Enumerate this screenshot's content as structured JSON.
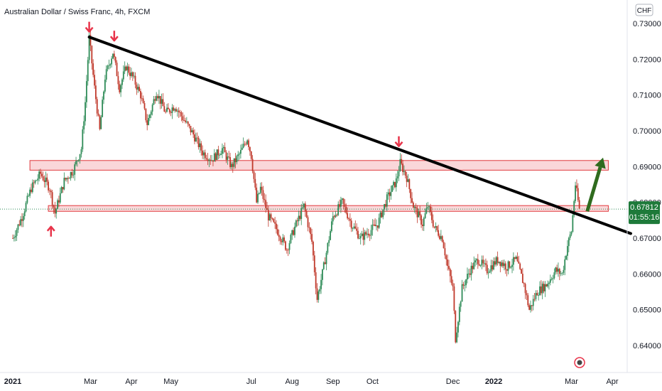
{
  "title": "Australian Dollar / Swiss Franc, 4h, FXCM",
  "currency": "CHF",
  "current": {
    "price": "0.67812",
    "countdown": "01:55:16",
    "color": "#1e7a3a"
  },
  "colors": {
    "up": "#2e8b57",
    "down": "#c0392b",
    "trendline": "#000000",
    "zone_fill": "#f8c9cc",
    "zone_stroke": "#e03a3e",
    "arrow_marker": "#e8344a",
    "projection": "#2f6b1e"
  },
  "chart_data": {
    "type": "candlestick",
    "symbol": "AUDCHF",
    "timeframe": "4h",
    "y_ticks": [
      "0.73000",
      "0.72000",
      "0.71000",
      "0.70000",
      "0.69000",
      "0.68000",
      "0.67000",
      "0.66000",
      "0.65000",
      "0.64000"
    ],
    "ylim": [
      0.6335,
      0.7335
    ],
    "x_ticks": [
      {
        "label": "2021",
        "date": "2021-01-01",
        "bold": true
      },
      {
        "label": "Mar",
        "date": "2021-03-01"
      },
      {
        "label": "Apr",
        "date": "2021-04-01"
      },
      {
        "label": "May",
        "date": "2021-05-01"
      },
      {
        "label": "Jul",
        "date": "2021-07-01"
      },
      {
        "label": "Aug",
        "date": "2021-08-01"
      },
      {
        "label": "Sep",
        "date": "2021-09-01"
      },
      {
        "label": "Oct",
        "date": "2021-10-01"
      },
      {
        "label": "Dec",
        "date": "2021-12-01"
      },
      {
        "label": "2022",
        "date": "2022-01-01",
        "bold": true
      },
      {
        "label": "Mar",
        "date": "2022-03-01"
      },
      {
        "label": "Apr",
        "date": "2022-04-01"
      }
    ],
    "price_path": [
      [
        "2021-01-01",
        0.67
      ],
      [
        "2021-01-08",
        0.676
      ],
      [
        "2021-01-15",
        0.684
      ],
      [
        "2021-01-22",
        0.688
      ],
      [
        "2021-01-29",
        0.684
      ],
      [
        "2021-02-02",
        0.677
      ],
      [
        "2021-02-09",
        0.686
      ],
      [
        "2021-02-16",
        0.689
      ],
      [
        "2021-02-22",
        0.695
      ],
      [
        "2021-02-25",
        0.708
      ],
      [
        "2021-02-28",
        0.726
      ],
      [
        "2021-03-04",
        0.712
      ],
      [
        "2021-03-08",
        0.7
      ],
      [
        "2021-03-12",
        0.715
      ],
      [
        "2021-03-18",
        0.722
      ],
      [
        "2021-03-23",
        0.712
      ],
      [
        "2021-03-28",
        0.718
      ],
      [
        "2021-04-02",
        0.715
      ],
      [
        "2021-04-08",
        0.71
      ],
      [
        "2021-04-13",
        0.702
      ],
      [
        "2021-04-20",
        0.711
      ],
      [
        "2021-04-27",
        0.705
      ],
      [
        "2021-05-04",
        0.707
      ],
      [
        "2021-05-11",
        0.703
      ],
      [
        "2021-05-18",
        0.699
      ],
      [
        "2021-05-25",
        0.694
      ],
      [
        "2021-06-01",
        0.692
      ],
      [
        "2021-06-09",
        0.695
      ],
      [
        "2021-06-16",
        0.69
      ],
      [
        "2021-06-23",
        0.694
      ],
      [
        "2021-06-28",
        0.698
      ],
      [
        "2021-07-01",
        0.693
      ],
      [
        "2021-07-05",
        0.68
      ],
      [
        "2021-07-08",
        0.684
      ],
      [
        "2021-07-14",
        0.676
      ],
      [
        "2021-07-21",
        0.672
      ],
      [
        "2021-07-28",
        0.667
      ],
      [
        "2021-08-03",
        0.673
      ],
      [
        "2021-08-10",
        0.679
      ],
      [
        "2021-08-16",
        0.669
      ],
      [
        "2021-08-20",
        0.653
      ],
      [
        "2021-08-25",
        0.662
      ],
      [
        "2021-09-01",
        0.676
      ],
      [
        "2021-09-08",
        0.68
      ],
      [
        "2021-09-15",
        0.674
      ],
      [
        "2021-09-22",
        0.67
      ],
      [
        "2021-09-29",
        0.672
      ],
      [
        "2021-10-05",
        0.674
      ],
      [
        "2021-10-12",
        0.681
      ],
      [
        "2021-10-19",
        0.686
      ],
      [
        "2021-10-22",
        0.691
      ],
      [
        "2021-10-27",
        0.687
      ],
      [
        "2021-11-01",
        0.679
      ],
      [
        "2021-11-08",
        0.674
      ],
      [
        "2021-11-12",
        0.679
      ],
      [
        "2021-11-17",
        0.673
      ],
      [
        "2021-11-23",
        0.67
      ],
      [
        "2021-11-27",
        0.662
      ],
      [
        "2021-12-01",
        0.656
      ],
      [
        "2021-12-03",
        0.642
      ],
      [
        "2021-12-08",
        0.656
      ],
      [
        "2021-12-14",
        0.661
      ],
      [
        "2021-12-20",
        0.664
      ],
      [
        "2021-12-27",
        0.661
      ],
      [
        "2022-01-04",
        0.664
      ],
      [
        "2022-01-11",
        0.662
      ],
      [
        "2022-01-18",
        0.664
      ],
      [
        "2022-01-24",
        0.657
      ],
      [
        "2022-01-28",
        0.65
      ],
      [
        "2022-02-03",
        0.655
      ],
      [
        "2022-02-10",
        0.657
      ],
      [
        "2022-02-17",
        0.661
      ],
      [
        "2022-02-22",
        0.66
      ],
      [
        "2022-02-26",
        0.668
      ],
      [
        "2022-03-01",
        0.672
      ],
      [
        "2022-03-04",
        0.685
      ],
      [
        "2022-03-07",
        0.6781
      ]
    ],
    "trendline": {
      "start": [
        "2021-02-28",
        0.7262
      ],
      "end": [
        "2022-04-15",
        0.6713
      ]
    },
    "zones": [
      {
        "top": 0.6917,
        "bottom": 0.689,
        "start": "2021-01-14",
        "end": "2022-03-29"
      },
      {
        "top": 0.6791,
        "bottom": 0.6775,
        "start": "2021-01-28",
        "end": "2022-03-29"
      }
    ],
    "markers": [
      {
        "date": "2021-02-28",
        "price": 0.7265,
        "dir": "down"
      },
      {
        "date": "2021-03-19",
        "price": 0.724,
        "dir": "down"
      },
      {
        "date": "2021-10-21",
        "price": 0.6945,
        "dir": "down"
      },
      {
        "date": "2021-01-30",
        "price": 0.676,
        "dir": "up"
      }
    ],
    "projection": {
      "start": [
        "2022-03-13",
        0.6775
      ],
      "end": [
        "2022-03-25",
        0.6925
      ]
    }
  }
}
